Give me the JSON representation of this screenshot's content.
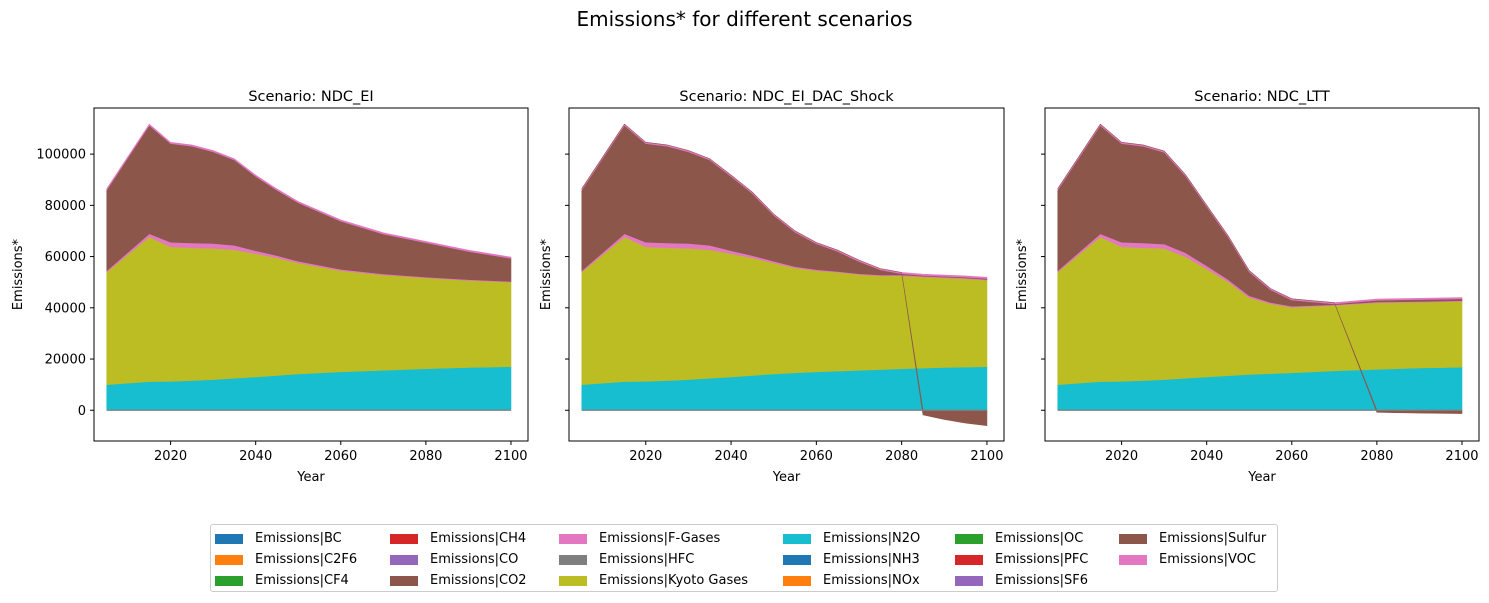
{
  "figure": {
    "title": "Emissions* for different scenarios"
  },
  "chart_data": [
    {
      "type": "area",
      "stacked": true,
      "title": "Scenario: NDC_EI",
      "xlabel": "Year",
      "ylabel": "Emissions*",
      "x": [
        2005,
        2015,
        2020,
        2025,
        2030,
        2035,
        2040,
        2045,
        2050,
        2060,
        2070,
        2080,
        2090,
        2100
      ],
      "xlim": [
        2002,
        2104
      ],
      "ylim": [
        -12000,
        118000
      ],
      "xticks": [
        2020,
        2040,
        2060,
        2080,
        2100
      ],
      "yticks": [
        0,
        20000,
        40000,
        60000,
        80000,
        100000
      ],
      "grid": false,
      "series": [
        {
          "name": "Emissions|N2O",
          "values": [
            10000,
            11200,
            11300,
            11600,
            12000,
            12500,
            13000,
            13600,
            14200,
            15000,
            15600,
            16200,
            16700,
            17000
          ]
        },
        {
          "name": "Emissions|Kyoto Gases",
          "values": [
            44000,
            56500,
            52500,
            51800,
            51200,
            50200,
            48100,
            45900,
            43300,
            39500,
            37200,
            35500,
            34000,
            33000
          ]
        },
        {
          "name": "Emissions|F-Gases",
          "values": [
            500,
            1200,
            1800,
            1900,
            1900,
            1700,
            1200,
            900,
            700,
            500,
            400,
            300,
            300,
            300
          ]
        },
        {
          "name": "Emissions|Sulfur",
          "values": [
            31500,
            42300,
            38500,
            37800,
            35800,
            33300,
            29000,
            25500,
            22800,
            18800,
            15600,
            13400,
            11000,
            9000
          ]
        },
        {
          "name": "Emissions|VOC",
          "values": [
            500,
            500,
            500,
            500,
            500,
            500,
            500,
            500,
            500,
            500,
            500,
            500,
            500,
            500
          ]
        }
      ]
    },
    {
      "type": "area",
      "stacked": true,
      "title": "Scenario: NDC_EI_DAC_Shock",
      "xlabel": "Year",
      "ylabel": "Emissions*",
      "x": [
        2005,
        2015,
        2020,
        2025,
        2030,
        2035,
        2040,
        2045,
        2050,
        2055,
        2060,
        2065,
        2070,
        2075,
        2080,
        2085,
        2090,
        2095,
        2100
      ],
      "xlim": [
        2002,
        2104
      ],
      "ylim": [
        -12000,
        118000
      ],
      "xticks": [
        2020,
        2040,
        2060,
        2080,
        2100
      ],
      "yticks": [
        0,
        20000,
        40000,
        60000,
        80000,
        100000
      ],
      "grid": false,
      "series": [
        {
          "name": "Emissions|N2O",
          "values": [
            10000,
            11200,
            11300,
            11600,
            12000,
            12500,
            13000,
            13600,
            14200,
            14600,
            15000,
            15300,
            15600,
            15900,
            16200,
            16450,
            16700,
            16850,
            17000
          ]
        },
        {
          "name": "Emissions|Kyoto Gases",
          "values": [
            44000,
            56500,
            52500,
            51800,
            51200,
            50200,
            48100,
            45900,
            43300,
            41000,
            39500,
            38600,
            37400,
            36600,
            36300,
            35600,
            35000,
            34500,
            33800
          ]
        },
        {
          "name": "Emissions|F-Gases",
          "values": [
            500,
            1200,
            1800,
            1900,
            1900,
            1700,
            1200,
            900,
            700,
            500,
            400,
            300,
            300,
            300,
            300,
            300,
            300,
            300,
            300
          ]
        },
        {
          "name": "Emissions|Sulfur",
          "values": [
            31500,
            42300,
            38500,
            37800,
            35800,
            33300,
            29000,
            24200,
            17900,
            13400,
            10100,
            7800,
            4800,
            2000,
            500,
            300,
            300,
            300,
            300
          ]
        },
        {
          "name": "Emissions|VOC",
          "values": [
            500,
            500,
            500,
            500,
            500,
            500,
            500,
            500,
            500,
            500,
            500,
            500,
            500,
            500,
            500,
            500,
            500,
            500,
            500
          ]
        },
        {
          "name": "Emissions|CO2",
          "values": [
            0,
            0,
            0,
            0,
            0,
            0,
            0,
            0,
            0,
            0,
            0,
            0,
            0,
            0,
            0,
            -1800,
            -3600,
            -5000,
            -6000
          ]
        }
      ]
    },
    {
      "type": "area",
      "stacked": true,
      "title": "Scenario: NDC_LTT",
      "xlabel": "Year",
      "ylabel": "Emissions*",
      "x": [
        2005,
        2015,
        2020,
        2025,
        2030,
        2035,
        2040,
        2045,
        2050,
        2055,
        2060,
        2070,
        2080,
        2090,
        2100
      ],
      "xlim": [
        2002,
        2104
      ],
      "ylim": [
        -12000,
        118000
      ],
      "xticks": [
        2020,
        2040,
        2060,
        2080,
        2100
      ],
      "yticks": [
        0,
        20000,
        40000,
        60000,
        80000,
        100000
      ],
      "grid": false,
      "series": [
        {
          "name": "Emissions|N2O",
          "values": [
            10000,
            11200,
            11300,
            11600,
            12000,
            12500,
            13000,
            13500,
            14000,
            14300,
            14600,
            15400,
            16000,
            16500,
            16800
          ]
        },
        {
          "name": "Emissions|Kyoto Gases",
          "values": [
            44000,
            56500,
            52500,
            51800,
            51200,
            47500,
            42200,
            36700,
            30000,
            27300,
            25600,
            25500,
            26000,
            25700,
            25700
          ]
        },
        {
          "name": "Emissions|F-Gases",
          "values": [
            500,
            1200,
            1800,
            1900,
            1700,
            1500,
            1200,
            900,
            700,
            500,
            400,
            300,
            300,
            300,
            300
          ]
        },
        {
          "name": "Emissions|Sulfur",
          "values": [
            31500,
            42300,
            38500,
            37800,
            35800,
            30000,
            23100,
            16600,
            9300,
            4900,
            2400,
            300,
            600,
            700,
            700
          ]
        },
        {
          "name": "Emissions|VOC",
          "values": [
            500,
            500,
            500,
            500,
            500,
            500,
            500,
            500,
            500,
            500,
            500,
            500,
            500,
            500,
            500
          ]
        },
        {
          "name": "Emissions|CO2",
          "values": [
            0,
            0,
            0,
            0,
            0,
            0,
            0,
            0,
            0,
            0,
            0,
            0,
            -800,
            -1100,
            -1300
          ]
        }
      ]
    }
  ],
  "legend": {
    "placement": "bottom-center",
    "columns": [
      [
        {
          "name": "Emissions|BC",
          "color": "#1f77b4"
        },
        {
          "name": "Emissions|C2F6",
          "color": "#ff7f0e"
        },
        {
          "name": "Emissions|CF4",
          "color": "#2ca02c"
        }
      ],
      [
        {
          "name": "Emissions|CH4",
          "color": "#d62728"
        },
        {
          "name": "Emissions|CO",
          "color": "#9467bd"
        },
        {
          "name": "Emissions|CO2",
          "color": "#8c564b"
        }
      ],
      [
        {
          "name": "Emissions|F-Gases",
          "color": "#e377c2"
        },
        {
          "name": "Emissions|HFC",
          "color": "#7f7f7f"
        },
        {
          "name": "Emissions|Kyoto Gases",
          "color": "#bcbd22"
        }
      ],
      [
        {
          "name": "Emissions|N2O",
          "color": "#17becf"
        },
        {
          "name": "Emissions|NH3",
          "color": "#1f77b4"
        },
        {
          "name": "Emissions|NOx",
          "color": "#ff7f0e"
        }
      ],
      [
        {
          "name": "Emissions|OC",
          "color": "#2ca02c"
        },
        {
          "name": "Emissions|PFC",
          "color": "#d62728"
        },
        {
          "name": "Emissions|SF6",
          "color": "#9467bd"
        }
      ],
      [
        {
          "name": "Emissions|Sulfur",
          "color": "#8c564b"
        },
        {
          "name": "Emissions|VOC",
          "color": "#e377c2"
        }
      ]
    ]
  },
  "colors": {
    "Emissions|N2O": "#17becf",
    "Emissions|Kyoto Gases": "#bcbd22",
    "Emissions|F-Gases": "#e377c2",
    "Emissions|Sulfur": "#8c564b",
    "Emissions|VOC": "#e377c2",
    "Emissions|CO2": "#8c564b",
    "zero-line": "#7f7f7f"
  }
}
